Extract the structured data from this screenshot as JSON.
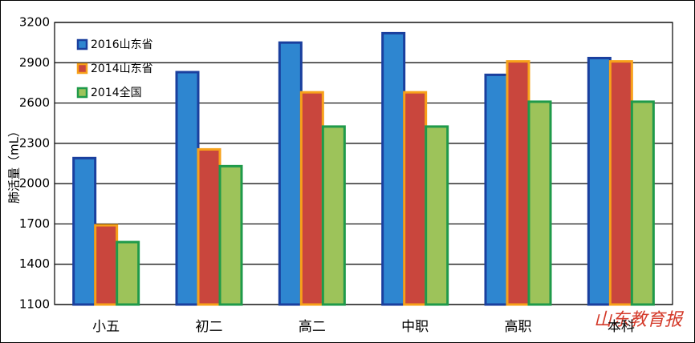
{
  "chart_data": {
    "type": "bar",
    "y_label": "肺活量（mL）",
    "categories": [
      "小五",
      "初二",
      "高二",
      "中职",
      "高职",
      "本科"
    ],
    "series": [
      {
        "name": "2016山东省",
        "color": "#2e86d0",
        "stroke": "#1a3f9e",
        "values": [
          2190,
          2830,
          3050,
          3120,
          2810,
          2935
        ]
      },
      {
        "name": "2014山东省",
        "color": "#c9463d",
        "stroke": "#f7a11a",
        "values": [
          1690,
          2255,
          2680,
          2680,
          2910,
          2910
        ]
      },
      {
        "name": "2014全国",
        "color": "#9dc35a",
        "stroke": "#1f9a4a",
        "values": [
          1565,
          2130,
          2425,
          2425,
          2610,
          2610
        ]
      }
    ],
    "ylim": [
      1100,
      3200
    ],
    "yticks": [
      1100,
      1400,
      1700,
      2000,
      2300,
      2600,
      2900,
      3200
    ],
    "grid": true,
    "legend_position": "upper-left",
    "watermark": "山东教育报"
  }
}
